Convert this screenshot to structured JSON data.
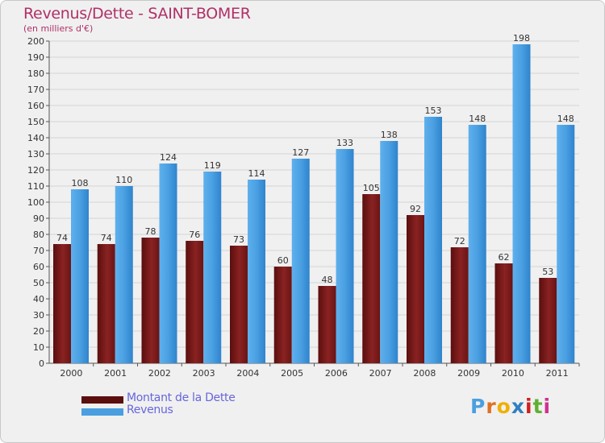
{
  "header": {
    "title": "Revenus/Dette - SAINT-BOMER",
    "subtitle": "(en milliers d'€)"
  },
  "legend": {
    "items": [
      {
        "label": "Montant de la Dette",
        "color": "#7a1a1a"
      },
      {
        "label": "Revenus",
        "color": "#4a9fe0"
      }
    ]
  },
  "logo": {
    "text": "Proxiti",
    "letter_colors": [
      "#4a9fe0",
      "#e07020",
      "#f0b000",
      "#3080c0",
      "#d02020",
      "#60b030",
      "#d03090"
    ]
  },
  "chart_data": {
    "type": "bar",
    "categories": [
      "2000",
      "2001",
      "2002",
      "2003",
      "2004",
      "2005",
      "2006",
      "2007",
      "2008",
      "2009",
      "2010",
      "2011"
    ],
    "series": [
      {
        "name": "Montant de la Dette",
        "values": [
          74,
          74,
          78,
          76,
          73,
          60,
          48,
          105,
          92,
          72,
          62,
          53
        ],
        "color": "#7a1a1a"
      },
      {
        "name": "Revenus",
        "values": [
          108,
          110,
          124,
          119,
          114,
          127,
          133,
          138,
          153,
          148,
          198,
          148
        ],
        "color": "#4a9fe0"
      }
    ],
    "ylim": [
      0,
      200
    ],
    "ytick_step": 10,
    "grid": true
  }
}
